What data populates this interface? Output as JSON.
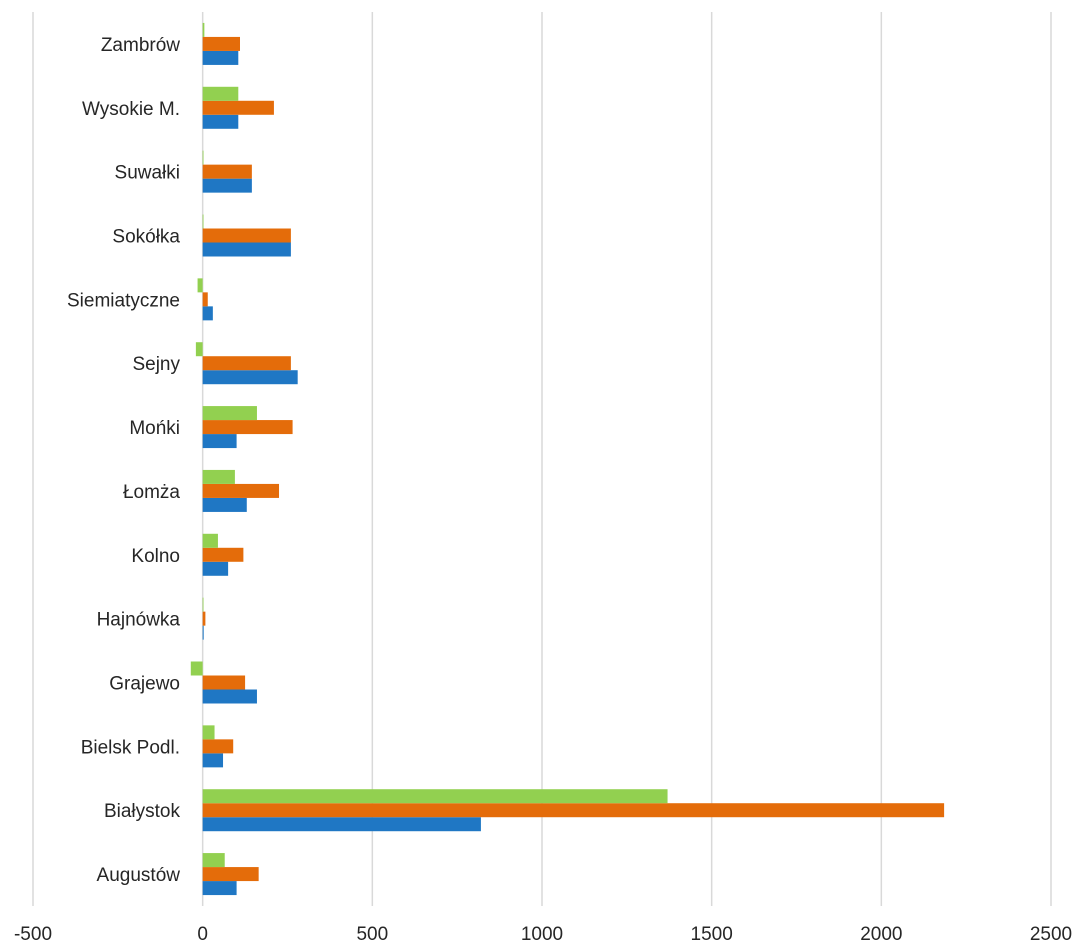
{
  "chart_data": {
    "type": "bar",
    "orientation": "horizontal",
    "categories": [
      "Augustów",
      "Białystok",
      "Bielsk Podl.",
      "Grajewo",
      "Hajnówka",
      "Kolno",
      "Łomża",
      "Mońki",
      "Sejny",
      "Siemiatyczne",
      "Sokółka",
      "Suwałki",
      "Wysokie M.",
      "Zambrów"
    ],
    "series": [
      {
        "color": "#1f77c4",
        "values": [
          100,
          820,
          60,
          160,
          3,
          75,
          130,
          100,
          280,
          30,
          260,
          145,
          105,
          105
        ]
      },
      {
        "color": "#e46c0a",
        "values": [
          165,
          2185,
          90,
          125,
          8,
          120,
          225,
          265,
          260,
          15,
          260,
          145,
          210,
          110
        ]
      },
      {
        "color": "#92d050",
        "values": [
          65,
          1370,
          35,
          -35,
          2,
          45,
          95,
          160,
          -20,
          -15,
          0,
          0,
          105,
          5
        ]
      }
    ],
    "xlim": [
      -500,
      2500
    ],
    "xticks": [
      -500,
      0,
      500,
      1000,
      1500,
      2000,
      2500
    ],
    "xtick_labels": [
      "-500",
      "0",
      "500",
      "1000",
      "1500",
      "2000",
      "2500"
    ],
    "grid": true,
    "legend": false
  }
}
